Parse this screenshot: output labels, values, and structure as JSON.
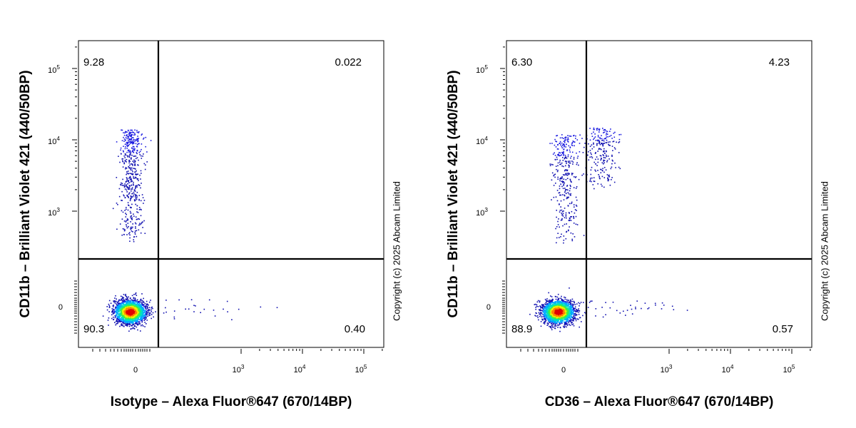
{
  "copyright": "Copyright (c) 2025 Abcam Limited",
  "chart_data": [
    {
      "type": "scatter",
      "title": "",
      "xlabel": "Isotype – Alexa Fluor®647 (670/14BP)",
      "ylabel": "CD11b – Brilliant Violet 421  (440/50BP)",
      "x_scale": "biexponential",
      "y_scale": "biexponential",
      "x_ticks": [
        "0",
        "10^3",
        "10^4",
        "10^5"
      ],
      "y_ticks": [
        "0",
        "10^3",
        "10^4",
        "10^5"
      ],
      "quadrants": {
        "upper_left": "9.28",
        "upper_right": "0.022",
        "lower_left": "90.3",
        "lower_right": "0.40"
      },
      "populations": [
        {
          "name": "",
          "x_range": [
            -120,
            60
          ],
          "y_range": [
            -150,
            120
          ],
          "relative_count": 90.3,
          "density": "high"
        },
        {
          "name": "",
          "x_range": [
            -80,
            40
          ],
          "y_range": [
            400,
            14000
          ],
          "relative_count": 9.28,
          "density": "medium"
        },
        {
          "name": "",
          "x_range": [
            150,
            5000
          ],
          "y_range": [
            -100,
            50
          ],
          "relative_count": 0.4,
          "density": "sparse"
        }
      ]
    },
    {
      "type": "scatter",
      "title": "",
      "xlabel": "CD36 – Alexa Fluor®647 (670/14BP)",
      "ylabel": "CD11b – Brilliant Violet 421  (440/50BP)",
      "x_scale": "biexponential",
      "y_scale": "biexponential",
      "x_ticks": [
        "0",
        "10^3",
        "10^4",
        "10^5"
      ],
      "y_ticks": [
        "0",
        "10^3",
        "10^4",
        "10^5"
      ],
      "quadrants": {
        "upper_left": "6.30",
        "upper_right": "4.23",
        "lower_left": "88.9",
        "lower_right": "0.57"
      },
      "populations": [
        {
          "name": "",
          "x_range": [
            -120,
            60
          ],
          "y_range": [
            -150,
            120
          ],
          "relative_count": 88.9,
          "density": "high"
        },
        {
          "name": "",
          "x_range": [
            -60,
            70
          ],
          "y_range": [
            400,
            12000
          ],
          "relative_count": 6.3,
          "density": "medium"
        },
        {
          "name": "",
          "x_range": [
            80,
            450
          ],
          "y_range": [
            2000,
            15000
          ],
          "relative_count": 4.23,
          "density": "medium"
        },
        {
          "name": "",
          "x_range": [
            100,
            2000
          ],
          "y_range": [
            -100,
            60
          ],
          "relative_count": 0.57,
          "density": "sparse"
        }
      ]
    }
  ],
  "colors": {
    "sparse": "#1010b0",
    "density_ramp": [
      "#1a1ae0",
      "#00a8ff",
      "#00e0c0",
      "#40f040",
      "#f0f000",
      "#ff8000",
      "#e00000"
    ],
    "axis": "#000000"
  }
}
